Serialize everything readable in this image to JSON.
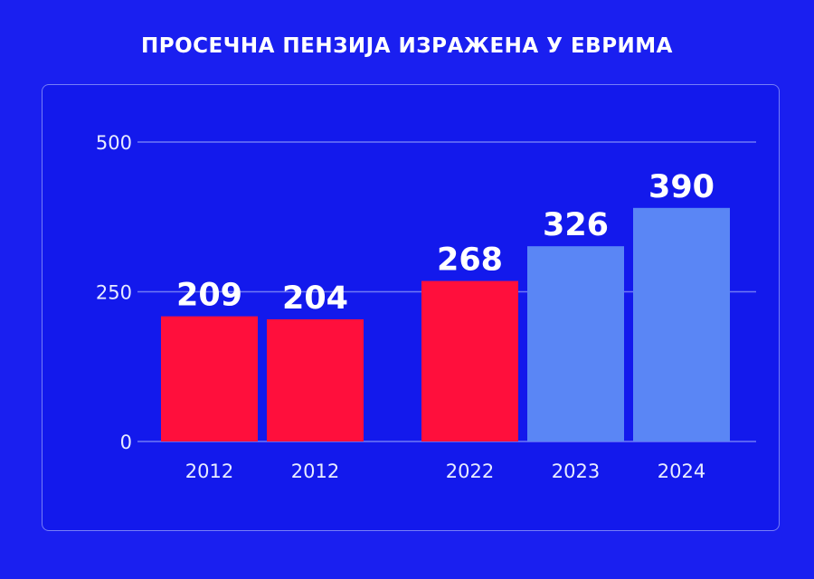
{
  "title": "ПРОСЕЧНА ПЕНЗИЈА ИЗРАЖЕНА У ЕВРИМА",
  "chart_data": {
    "type": "bar",
    "title": "ПРОСЕЧНА ПЕНЗИЈА ИЗРАЖЕНА У ЕВРИМА",
    "xlabel": "",
    "ylabel": "",
    "categories": [
      "2012",
      "2012",
      "2022",
      "2023",
      "2024"
    ],
    "values": [
      209,
      204,
      268,
      326,
      390
    ],
    "data_labels": [
      "209",
      "204",
      "268",
      "326",
      "390"
    ],
    "bar_colors": [
      "#ff0f3c",
      "#ff0f3c",
      "#ff0f3c",
      "#5a86f5",
      "#5a86f5"
    ],
    "yticks": [
      0,
      250,
      500
    ],
    "ytick_labels": [
      "0",
      "250",
      "500"
    ],
    "ylim": [
      0,
      500
    ],
    "grid": true,
    "legend": "none"
  }
}
